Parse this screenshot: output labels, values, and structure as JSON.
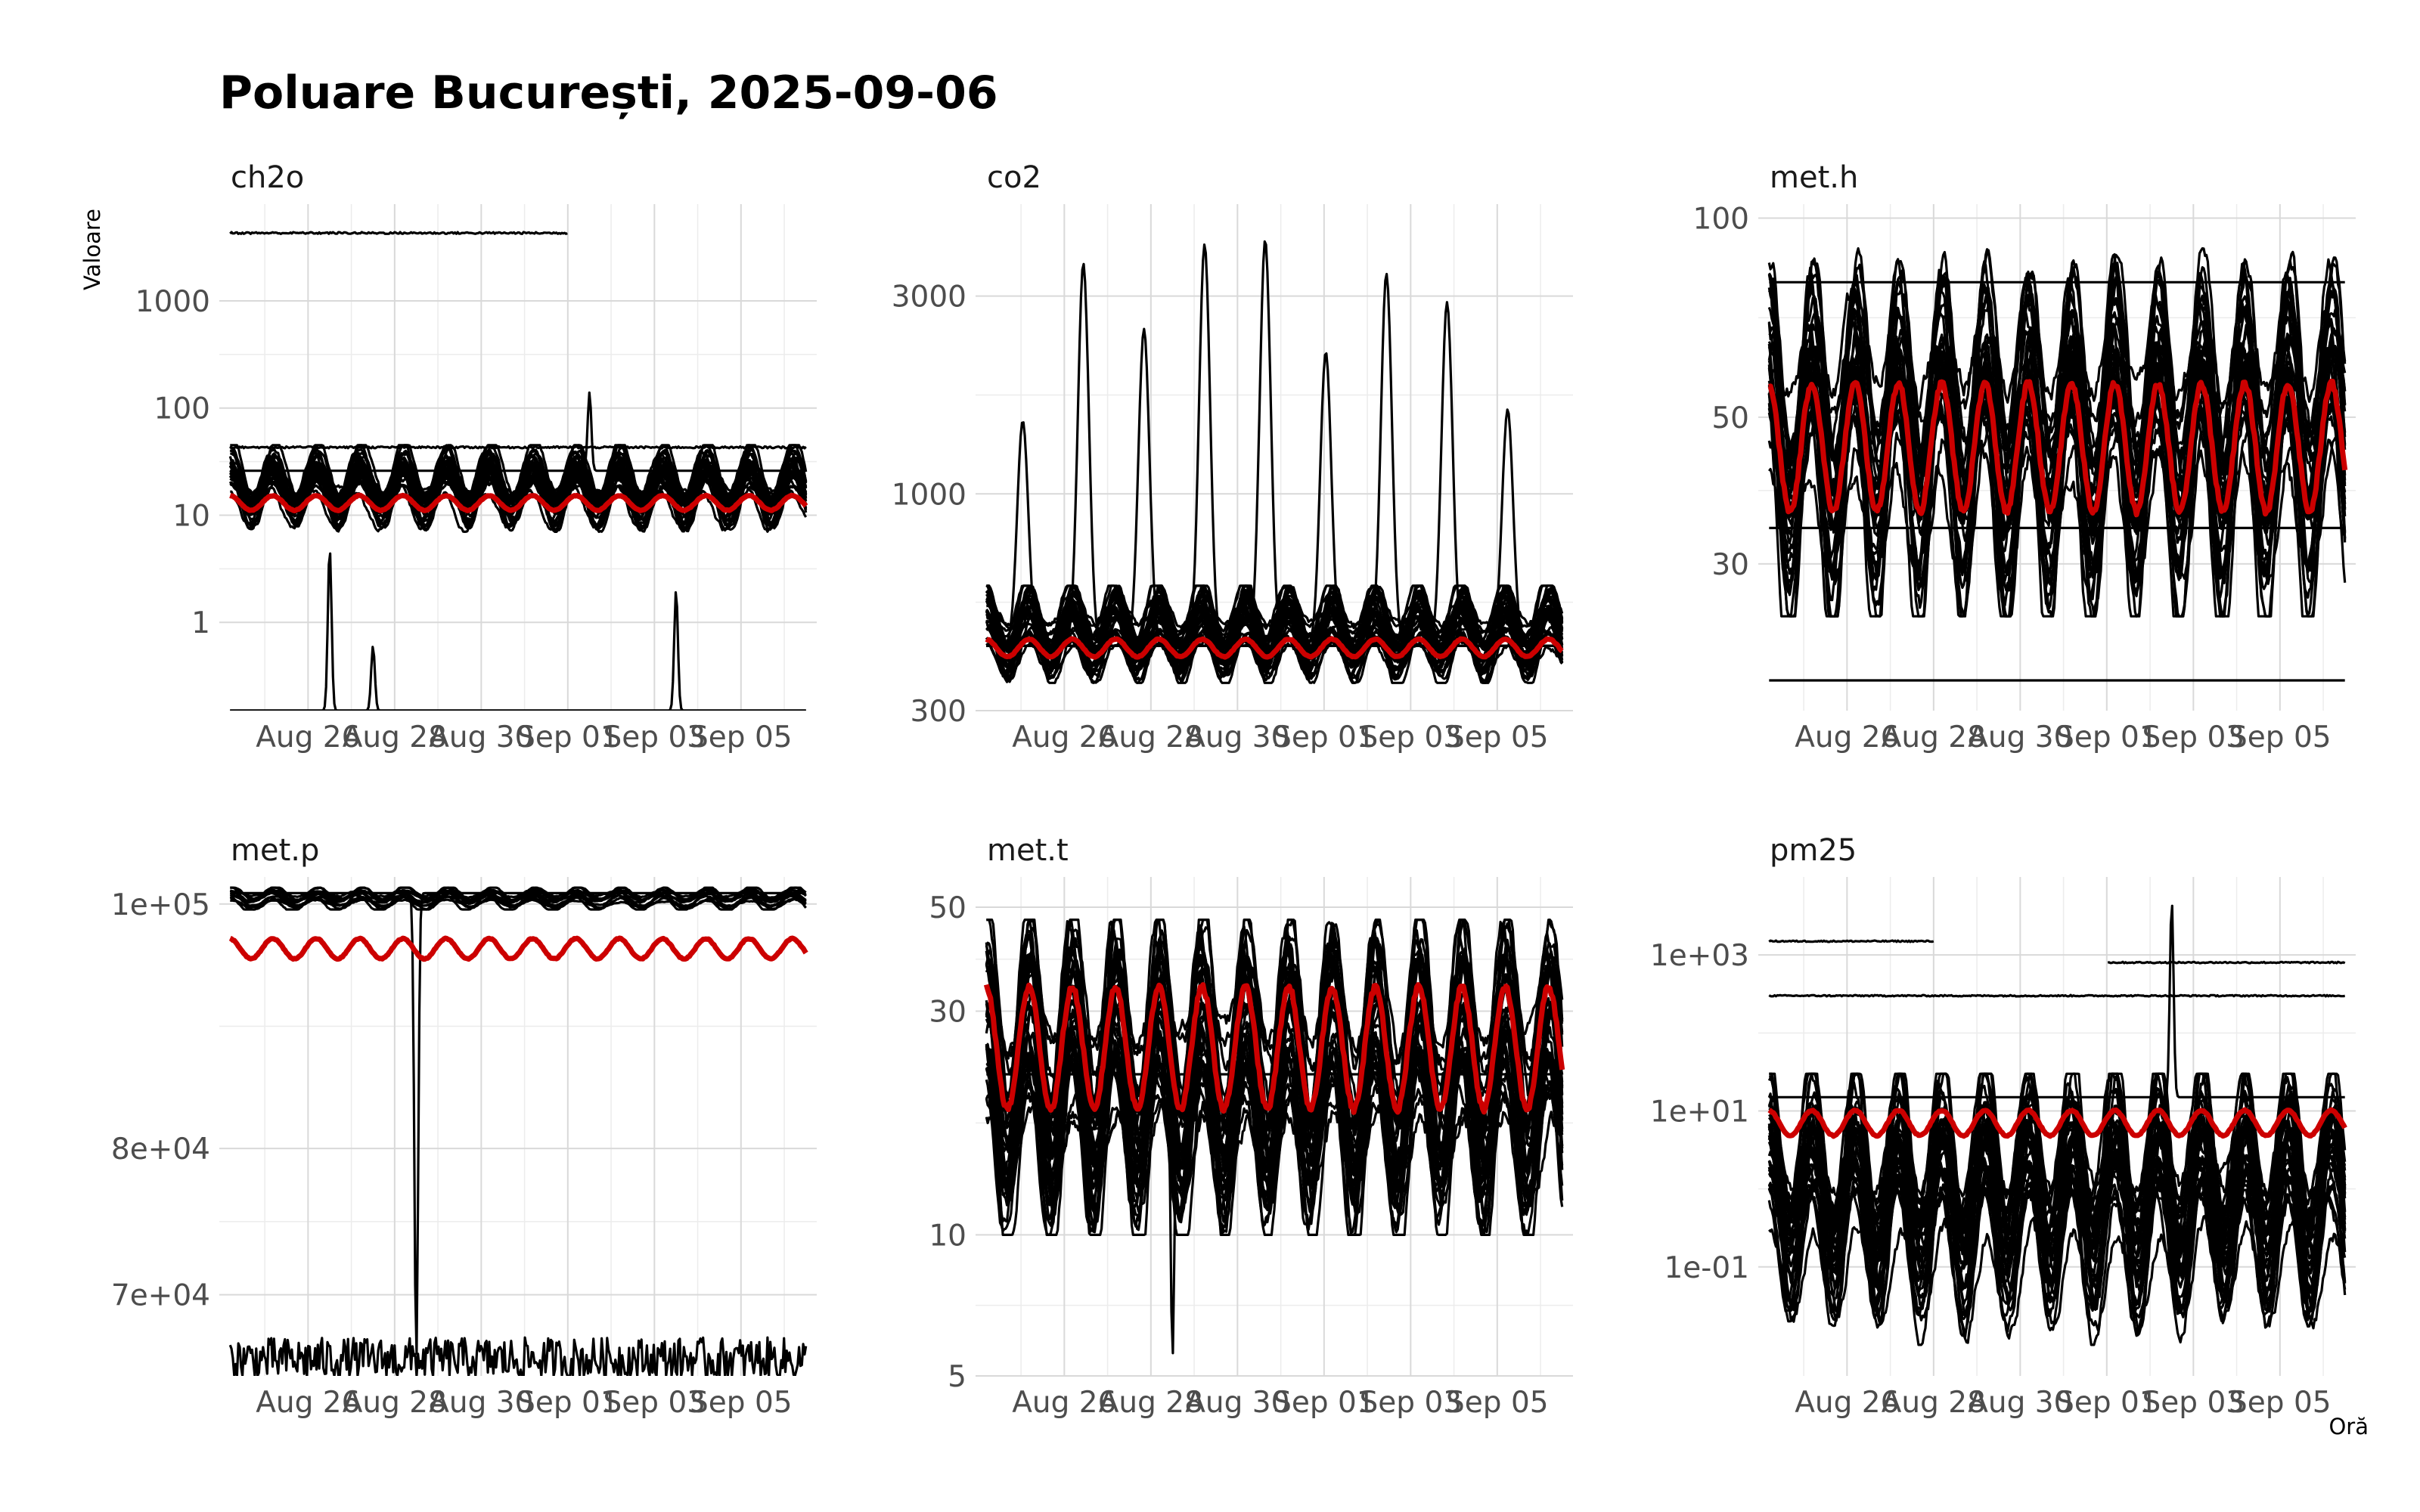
{
  "chart_data": {
    "type": "line",
    "title": "Poluare București, 2025-09-06",
    "xlabel": "Oră",
    "ylabel": "Valoare",
    "x_range": [
      "2025-08-24",
      "2025-09-06"
    ],
    "x_ticks": [
      "Aug 26",
      "Aug 28",
      "Aug 30",
      "Sep 01",
      "Sep 03",
      "Sep 05"
    ],
    "x_tick_dates": [
      "2025-08-26",
      "2025-08-28",
      "2025-08-30",
      "2025-09-01",
      "2025-09-03",
      "2025-09-05"
    ],
    "colors": {
      "sensors": "#000000",
      "mean": "#cc0000"
    },
    "panels": [
      {
        "name": "ch2o",
        "y_scale": "log10",
        "y_range": [
          0.15,
          8000
        ],
        "y_ticks": [
          1,
          10,
          100,
          1000
        ],
        "y_tick_labels": [
          "1",
          "10",
          "100",
          "1000"
        ],
        "mean": {
          "center": 13,
          "amplitude_factor": 1.17,
          "min": 11,
          "max": 16
        },
        "typical_sensor_range": [
          7,
          45
        ],
        "outliers": [
          {
            "description": "constant high sensor",
            "value": 4300,
            "until": "2025-09-01"
          },
          {
            "value": 43,
            "level": "flat upper sensor"
          },
          {
            "value": 140,
            "at": "2025-09-01"
          },
          {
            "value": 5,
            "at": "2025-08-26"
          },
          {
            "value": 0.6,
            "at": "2025-08-27"
          },
          {
            "value": 2,
            "at": "2025-09-03"
          }
        ]
      },
      {
        "name": "co2",
        "y_scale": "log10",
        "y_range": [
          300,
          5000
        ],
        "y_ticks": [
          300,
          1000,
          3000
        ],
        "y_tick_labels": [
          "300",
          "1000",
          "3000"
        ],
        "mean": {
          "center": 425,
          "amplitude_factor": 1.05,
          "min": 400,
          "max": 450
        },
        "typical_sensor_range": [
          350,
          600
        ],
        "peaks": [
          1500,
          3600,
          2500,
          4000,
          4100,
          2200,
          3400,
          2900,
          1600
        ]
      },
      {
        "name": "met.h",
        "y_scale": "log10",
        "y_range": [
          18,
          105
        ],
        "y_ticks": [
          30,
          50,
          100
        ],
        "y_tick_labels": [
          "30",
          "50",
          "100"
        ],
        "mean": {
          "center": 45,
          "amplitude_factor": 1.25,
          "min": 35,
          "max": 70
        },
        "typical_sensor_range": [
          25,
          90
        ],
        "flat_sensors": [
          80,
          34,
          20
        ]
      },
      {
        "name": "met.p",
        "y_scale": "log10",
        "y_range": [
          65000,
          102500
        ],
        "y_ticks": [
          70000,
          80000,
          100000
        ],
        "y_tick_labels": [
          "7e+04",
          "8e+04",
          "1e+05"
        ],
        "mean": {
          "center": 96000,
          "min": 95000,
          "max": 98000
        },
        "typical_sensor_range": [
          99500,
          101500
        ],
        "outliers": [
          {
            "description": "flat low sensor",
            "value": 66000
          },
          {
            "description": "drop to low value",
            "value": 66000,
            "at": "2025-08-28"
          }
        ]
      },
      {
        "name": "met.t",
        "y_scale": "log10",
        "y_range": [
          5,
          58
        ],
        "y_ticks": [
          5,
          10,
          30,
          50
        ],
        "y_tick_labels": [
          "5",
          "10",
          "30",
          "50"
        ],
        "mean": {
          "center": 25,
          "amplitude_factor": 1.35,
          "min": 17,
          "max": 35
        },
        "typical_sensor_range": [
          10,
          47
        ],
        "outliers": [
          {
            "value": 5.5,
            "at": "2025-08-28"
          }
        ]
      },
      {
        "name": "pm25",
        "y_scale": "log10",
        "y_range": [
          0.004,
          10000
        ],
        "y_ticks": [
          0.1,
          10,
          1000
        ],
        "y_tick_labels": [
          "1e-01",
          "1e+01",
          "1e+03"
        ],
        "mean": {
          "center": 7,
          "amplitude_factor": 1.45,
          "min": 4,
          "max": 15
        },
        "typical_sensor_range": [
          0.01,
          30
        ],
        "outliers": [
          {
            "value": 1500,
            "until": "2025-08-28"
          },
          {
            "value": 300
          },
          {
            "value": 800,
            "from": "2025-09-01"
          },
          {
            "value": 5000,
            "at": "2025-09-02"
          }
        ]
      }
    ]
  }
}
